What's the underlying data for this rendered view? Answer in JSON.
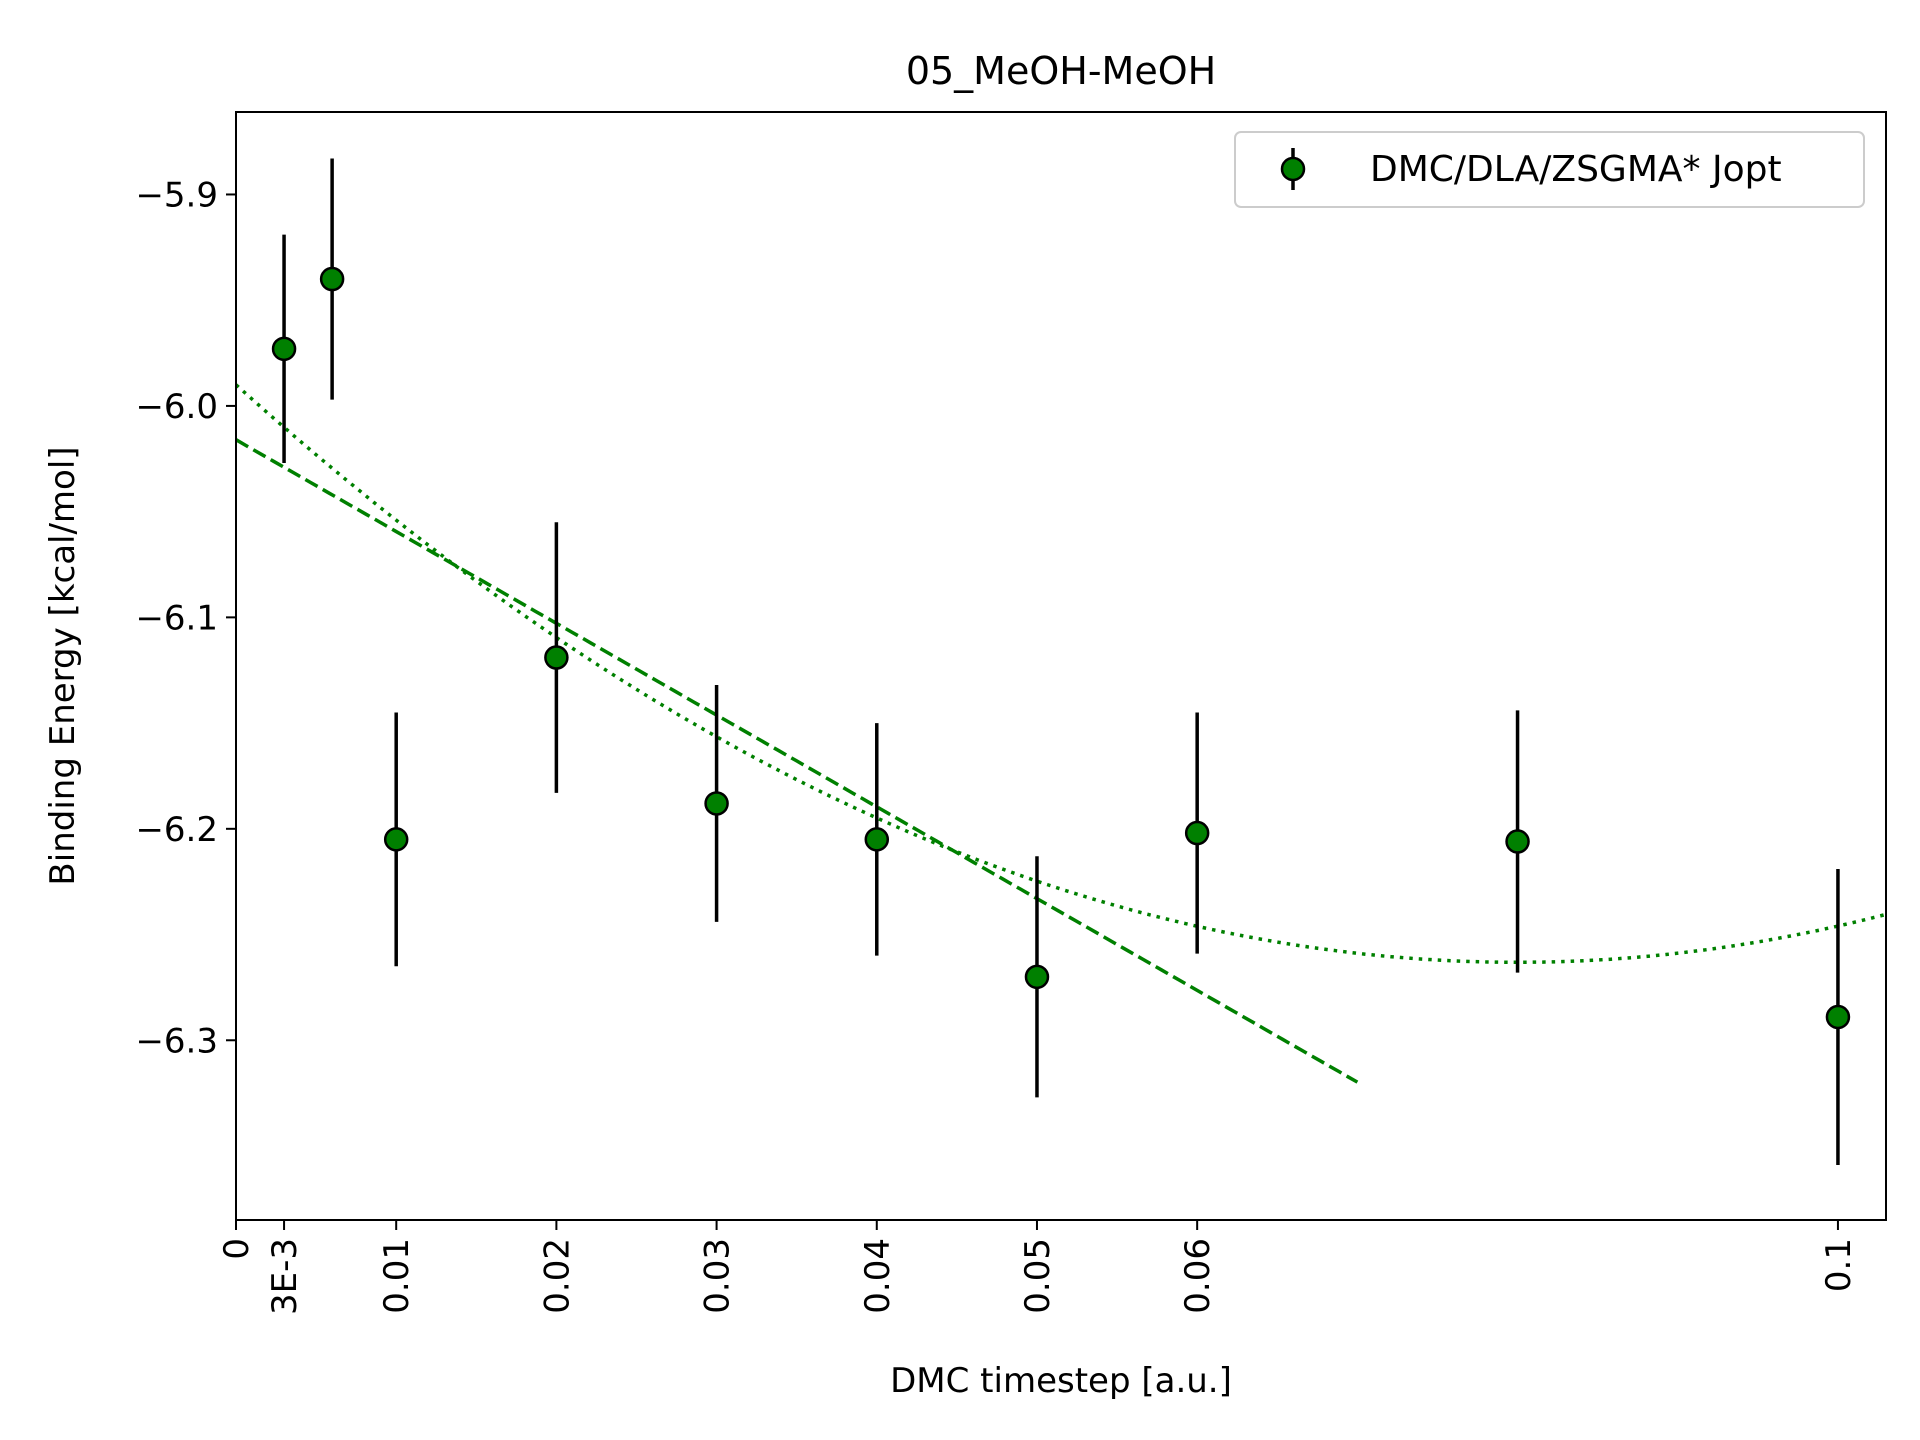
{
  "chart_data": {
    "type": "scatter",
    "title": "05_MeOH-MeOH",
    "xlabel": "DMC timestep [a.u.]",
    "ylabel": "Binding Energy [kcal/mol]",
    "xlim": [
      0,
      0.103
    ],
    "ylim": [
      -6.385,
      -5.861
    ],
    "grid": false,
    "legend_position": "top-right",
    "x_ticks": [
      {
        "value": 0,
        "label": "0"
      },
      {
        "value": 0.003,
        "label": "3E-3"
      },
      {
        "value": 0.01,
        "label": "0.01"
      },
      {
        "value": 0.02,
        "label": "0.02"
      },
      {
        "value": 0.03,
        "label": "0.03"
      },
      {
        "value": 0.04,
        "label": "0.04"
      },
      {
        "value": 0.05,
        "label": "0.05"
      },
      {
        "value": 0.06,
        "label": "0.06"
      },
      {
        "value": 0.1,
        "label": "0.1"
      }
    ],
    "y_ticks": [
      {
        "value": -5.9,
        "label": "−5.9"
      },
      {
        "value": -6.0,
        "label": "−6.0"
      },
      {
        "value": -6.1,
        "label": "−6.1"
      },
      {
        "value": -6.2,
        "label": "−6.2"
      },
      {
        "value": -6.3,
        "label": "−6.3"
      }
    ],
    "series": [
      {
        "name": "DMC/DLA/ZSGMA* Jopt",
        "color": "#008000",
        "edge_color": "#000000",
        "x": [
          0.003,
          0.006,
          0.01,
          0.02,
          0.03,
          0.04,
          0.05,
          0.06,
          0.08,
          0.1
        ],
        "y": [
          -5.973,
          -5.94,
          -6.205,
          -6.119,
          -6.188,
          -6.205,
          -6.27,
          -6.202,
          -6.206,
          -6.289
        ],
        "yerr": [
          0.054,
          0.057,
          0.06,
          0.064,
          0.056,
          0.055,
          0.057,
          0.057,
          0.062,
          0.07
        ]
      }
    ],
    "fits": [
      {
        "name": "linear-fit",
        "style": "dashed",
        "color": "#008000",
        "x_range": [
          0,
          0.07
        ],
        "coeffs": [
          -6.016,
          -4.34
        ]
      },
      {
        "name": "quadratic-fit",
        "style": "dotted",
        "color": "#008000",
        "x_range": [
          0,
          0.103
        ],
        "coeffs": [
          -5.99,
          -6.83,
          42.7
        ]
      }
    ]
  }
}
